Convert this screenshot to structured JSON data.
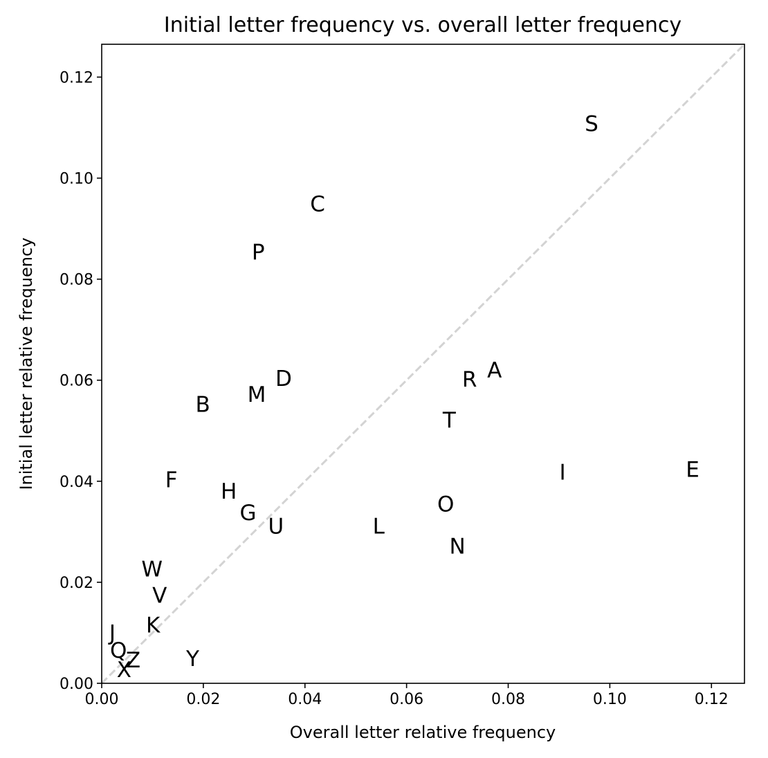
{
  "chart_data": {
    "type": "scatter",
    "title": "Initial letter frequency vs. overall letter frequency",
    "xlabel": "Overall letter relative frequency",
    "ylabel": "Initial letter relative frequency",
    "xlim": [
      0,
      0.1265
    ],
    "ylim": [
      0,
      0.1265
    ],
    "xticks": [
      "0.00",
      "0.02",
      "0.04",
      "0.06",
      "0.08",
      "0.10",
      "0.12"
    ],
    "yticks": [
      "0.00",
      "0.02",
      "0.04",
      "0.06",
      "0.08",
      "0.10",
      "0.12"
    ],
    "grid": false,
    "reference_line": {
      "style": "dashed",
      "color": "#d3d3d3",
      "from": [
        0,
        0
      ],
      "to": [
        0.1265,
        0.1265
      ]
    },
    "points": [
      {
        "label": "S",
        "x": 0.0964,
        "y": 0.1105
      },
      {
        "label": "C",
        "x": 0.0425,
        "y": 0.0946
      },
      {
        "label": "P",
        "x": 0.0308,
        "y": 0.0851
      },
      {
        "label": "A",
        "x": 0.0773,
        "y": 0.0617
      },
      {
        "label": "R",
        "x": 0.0724,
        "y": 0.0599
      },
      {
        "label": "D",
        "x": 0.0358,
        "y": 0.06
      },
      {
        "label": "M",
        "x": 0.0305,
        "y": 0.0569
      },
      {
        "label": "B",
        "x": 0.0199,
        "y": 0.0549
      },
      {
        "label": "T",
        "x": 0.0684,
        "y": 0.0518
      },
      {
        "label": "E",
        "x": 0.1163,
        "y": 0.042
      },
      {
        "label": "I",
        "x": 0.0907,
        "y": 0.0415
      },
      {
        "label": "F",
        "x": 0.0137,
        "y": 0.04
      },
      {
        "label": "H",
        "x": 0.025,
        "y": 0.0377
      },
      {
        "label": "O",
        "x": 0.0677,
        "y": 0.0352
      },
      {
        "label": "G",
        "x": 0.0288,
        "y": 0.0335
      },
      {
        "label": "U",
        "x": 0.0343,
        "y": 0.0308
      },
      {
        "label": "L",
        "x": 0.0545,
        "y": 0.0308
      },
      {
        "label": "N",
        "x": 0.07,
        "y": 0.0268
      },
      {
        "label": "W",
        "x": 0.0099,
        "y": 0.0223
      },
      {
        "label": "V",
        "x": 0.0114,
        "y": 0.0171
      },
      {
        "label": "K",
        "x": 0.0101,
        "y": 0.0112
      },
      {
        "label": "J",
        "x": 0.0021,
        "y": 0.0097
      },
      {
        "label": "Q",
        "x": 0.0033,
        "y": 0.0062
      },
      {
        "label": "Z",
        "x": 0.0062,
        "y": 0.0043
      },
      {
        "label": "Y",
        "x": 0.0179,
        "y": 0.0046
      },
      {
        "label": "X",
        "x": 0.0044,
        "y": 0.0024
      }
    ]
  }
}
